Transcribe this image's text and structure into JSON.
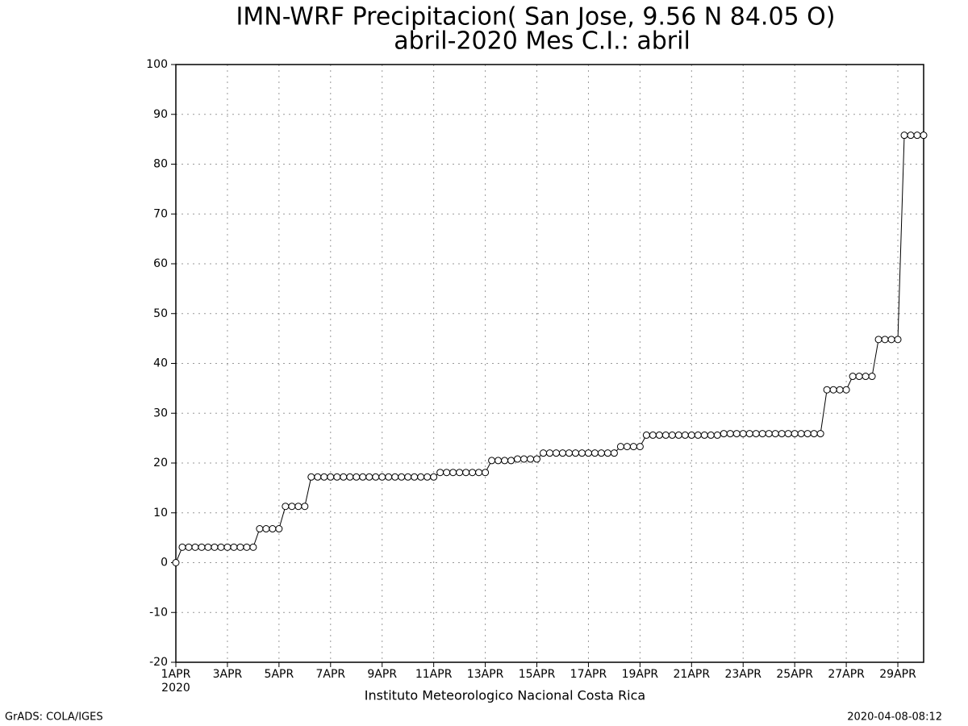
{
  "chart_data": {
    "type": "line",
    "title": "IMN-WRF  Precipitacion( San Jose, 9.56  N 84.05  O)",
    "subtitle": "abril-2020 Mes C.I.: abril",
    "x_axis_year": "2020",
    "footer": "Instituto Meteorologico Nacional Costa Rica",
    "credit": "GrADS: COLA/IGES",
    "timestamp": "2020-04-08-08:12",
    "grid": true,
    "xlim": [
      0,
      29
    ],
    "xticks": [
      {
        "value": 0,
        "label": "1APR"
      },
      {
        "value": 2,
        "label": "3APR"
      },
      {
        "value": 4,
        "label": "5APR"
      },
      {
        "value": 6,
        "label": "7APR"
      },
      {
        "value": 8,
        "label": "9APR"
      },
      {
        "value": 10,
        "label": "11APR"
      },
      {
        "value": 12,
        "label": "13APR"
      },
      {
        "value": 14,
        "label": "15APR"
      },
      {
        "value": 16,
        "label": "17APR"
      },
      {
        "value": 18,
        "label": "19APR"
      },
      {
        "value": 20,
        "label": "21APR"
      },
      {
        "value": 22,
        "label": "23APR"
      },
      {
        "value": 24,
        "label": "25APR"
      },
      {
        "value": 26,
        "label": "27APR"
      },
      {
        "value": 28,
        "label": "29APR"
      }
    ],
    "ylim": [
      -20,
      100
    ],
    "yticks": [
      -20,
      -10,
      0,
      10,
      20,
      30,
      40,
      50,
      60,
      70,
      80,
      90,
      100
    ],
    "x": [
      0,
      0.25,
      0.5,
      0.75,
      1,
      1.25,
      1.5,
      1.75,
      2,
      2.25,
      2.5,
      2.75,
      3,
      3.25,
      3.5,
      3.75,
      4,
      4.25,
      4.5,
      4.75,
      5,
      5.25,
      5.5,
      5.75,
      6,
      6.25,
      6.5,
      6.75,
      7,
      7.25,
      7.5,
      7.75,
      8,
      8.25,
      8.5,
      8.75,
      9,
      9.25,
      9.5,
      9.75,
      10,
      10.25,
      10.5,
      10.75,
      11,
      11.25,
      11.5,
      11.75,
      12,
      12.25,
      12.5,
      12.75,
      13,
      13.25,
      13.5,
      13.75,
      14,
      14.25,
      14.5,
      14.75,
      15,
      15.25,
      15.5,
      15.75,
      16,
      16.25,
      16.5,
      16.75,
      17,
      17.25,
      17.5,
      17.75,
      18,
      18.25,
      18.5,
      18.75,
      19,
      19.25,
      19.5,
      19.75,
      20,
      20.25,
      20.5,
      20.75,
      21,
      21.25,
      21.5,
      21.75,
      22,
      22.25,
      22.5,
      22.75,
      23,
      23.25,
      23.5,
      23.75,
      24,
      24.25,
      24.5,
      24.75,
      25,
      25.25,
      25.5,
      25.75,
      26,
      26.25,
      26.5,
      26.75,
      27,
      27.25,
      27.5,
      27.75,
      28,
      28.25,
      28.5,
      28.75,
      29
    ],
    "series": [
      {
        "color": "#000000",
        "values": [
          0,
          3.1,
          3.1,
          3.1,
          3.1,
          3.1,
          3.1,
          3.1,
          3.1,
          3.1,
          3.1,
          3.1,
          3.1,
          6.8,
          6.8,
          6.8,
          6.8,
          11.3,
          11.3,
          11.3,
          11.3,
          17.2,
          17.2,
          17.2,
          17.2,
          17.2,
          17.2,
          17.2,
          17.2,
          17.2,
          17.2,
          17.2,
          17.2,
          17.2,
          17.2,
          17.2,
          17.2,
          17.2,
          17.2,
          17.2,
          17.2,
          18.1,
          18.1,
          18.1,
          18.1,
          18.1,
          18.1,
          18.1,
          18.1,
          20.5,
          20.5,
          20.5,
          20.5,
          20.8,
          20.8,
          20.8,
          20.8,
          22.0,
          22.0,
          22.0,
          22.0,
          22.0,
          22.0,
          22.0,
          22.0,
          22.0,
          22.0,
          22.0,
          22.0,
          23.3,
          23.3,
          23.3,
          23.3,
          25.6,
          25.6,
          25.6,
          25.6,
          25.6,
          25.6,
          25.6,
          25.6,
          25.6,
          25.6,
          25.6,
          25.6,
          25.9,
          25.9,
          25.9,
          25.9,
          25.9,
          25.9,
          25.9,
          25.9,
          25.9,
          25.9,
          25.9,
          25.9,
          25.9,
          25.9,
          25.9,
          25.9,
          34.7,
          34.7,
          34.7,
          34.7,
          37.4,
          37.4,
          37.4,
          37.4,
          44.8,
          44.8,
          44.8,
          44.8,
          85.8,
          85.8,
          85.8,
          85.8
        ]
      }
    ]
  }
}
